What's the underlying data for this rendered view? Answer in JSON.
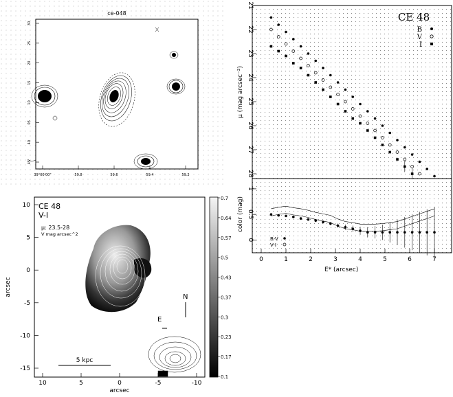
{
  "figure": {
    "contour_panel": {
      "title": "ce-048",
      "ra_ticks": [
        "39°00'00\"",
        "59.8",
        "59.6",
        "59.4",
        "59.2"
      ],
      "dec_ticks": [
        "30",
        "25",
        "20",
        "15",
        "10",
        "05",
        "40",
        "45"
      ]
    },
    "color_map": {
      "name": "CE 48",
      "band": "V-I",
      "mu_text": "μ: 23.5-28",
      "mu_units": "V mag arcsec^2",
      "scalebar": "5 kpc",
      "north": "N",
      "east": "E",
      "xlabel": "arcsec",
      "ylabel": "arcsec",
      "x_ticks": [
        "10",
        "5",
        "0",
        "-5",
        "-10"
      ],
      "y_ticks": [
        "10",
        "5",
        "0",
        "-5",
        "-10",
        "-15"
      ],
      "colorbar_ticks": [
        "0.7",
        "0.64",
        "0.57",
        "0.5",
        "0.43",
        "0.37",
        "0.3",
        "0.23",
        "0.17",
        "0.1"
      ]
    },
    "profile_panel": {
      "name": "CE 48",
      "ylabel": "μ (mag arcsec⁻²)",
      "xlabel": "E* (arcsec)",
      "legend": [
        {
          "band": "B",
          "marker": "filled-circle"
        },
        {
          "band": "V",
          "marker": "open-circle"
        },
        {
          "band": "I",
          "marker": "filled-square"
        }
      ]
    },
    "color_panel": {
      "ylabel": "color (mag)",
      "legend": [
        {
          "label": "B-V",
          "marker": "filled-circle"
        },
        {
          "label": "V-I",
          "marker": "open-circle"
        }
      ]
    }
  },
  "chart_data": [
    {
      "type": "scatter",
      "title": "CE 48",
      "xlabel": "E* (arcsec)",
      "ylabel": "μ (mag arcsec⁻²)",
      "xlim": [
        0,
        7.5
      ],
      "ylim": [
        28.2,
        21
      ],
      "x_ticks": [
        0,
        1,
        2,
        3,
        4,
        5,
        6,
        7
      ],
      "y_ticks": [
        21,
        22,
        23,
        24,
        25,
        26,
        27,
        28
      ],
      "series": [
        {
          "name": "B",
          "x": [
            0.4,
            0.7,
            1.0,
            1.3,
            1.6,
            1.9,
            2.2,
            2.5,
            2.8,
            3.1,
            3.4,
            3.7,
            4.0,
            4.3,
            4.6,
            4.9,
            5.2,
            5.5,
            5.8,
            6.1,
            6.4,
            6.7,
            7.0
          ],
          "y": [
            21.5,
            21.8,
            22.1,
            22.4,
            22.7,
            23.0,
            23.3,
            23.6,
            23.9,
            24.2,
            24.5,
            24.8,
            25.1,
            25.4,
            25.7,
            26.0,
            26.3,
            26.6,
            26.9,
            27.2,
            27.5,
            27.8,
            28.1
          ]
        },
        {
          "name": "V",
          "x": [
            0.4,
            0.7,
            1.0,
            1.3,
            1.6,
            1.9,
            2.2,
            2.5,
            2.8,
            3.1,
            3.4,
            3.7,
            4.0,
            4.3,
            4.6,
            4.9,
            5.2,
            5.5,
            5.8,
            6.1,
            6.4,
            6.7,
            7.0
          ],
          "y": [
            22.0,
            22.3,
            22.6,
            22.9,
            23.2,
            23.5,
            23.8,
            24.1,
            24.4,
            24.7,
            25.0,
            25.3,
            25.6,
            25.9,
            26.2,
            26.5,
            26.8,
            27.1,
            27.4,
            27.7,
            28.0,
            28.3,
            28.6
          ]
        },
        {
          "name": "I",
          "x": [
            0.4,
            0.7,
            1.0,
            1.3,
            1.6,
            1.9,
            2.2,
            2.5,
            2.8,
            3.1,
            3.4,
            3.7,
            4.0,
            4.3,
            4.6,
            4.9,
            5.2,
            5.5,
            5.8,
            6.1,
            6.4,
            6.7,
            7.0
          ],
          "y": [
            22.7,
            22.9,
            23.1,
            23.4,
            23.6,
            23.9,
            24.2,
            24.5,
            24.8,
            25.1,
            25.4,
            25.7,
            25.9,
            26.2,
            26.5,
            26.8,
            27.1,
            27.4,
            27.7,
            28.0,
            28.2,
            28.4,
            28.6
          ]
        }
      ]
    },
    {
      "type": "scatter",
      "xlabel": "E* (arcsec)",
      "ylabel": "color (mag)",
      "xlim": [
        0,
        7.5
      ],
      "ylim": [
        -0.25,
        1.2
      ],
      "x_ticks": [
        0,
        1,
        2,
        3,
        4,
        5,
        6,
        7
      ],
      "y_ticks": [
        0,
        0.5,
        1
      ],
      "series": [
        {
          "name": "B-V",
          "x": [
            0.4,
            0.7,
            1.0,
            1.3,
            1.6,
            1.9,
            2.2,
            2.5,
            2.8,
            3.1,
            3.4,
            3.7,
            4.0,
            4.3,
            4.6,
            4.9,
            5.2,
            5.5,
            5.8,
            6.1,
            6.4,
            6.7,
            7.0
          ],
          "y": [
            0.5,
            0.48,
            0.47,
            0.45,
            0.42,
            0.4,
            0.38,
            0.35,
            0.32,
            0.28,
            0.25,
            0.22,
            0.18,
            0.15,
            0.15,
            0.15,
            0.15,
            0.15,
            0.15,
            0.15,
            0.15,
            0.15,
            0.15
          ],
          "err": [
            0.02,
            0.02,
            0.02,
            0.02,
            0.02,
            0.02,
            0.03,
            0.03,
            0.03,
            0.04,
            0.05,
            0.06,
            0.08,
            0.1,
            0.12,
            0.15,
            0.2,
            0.25,
            0.3,
            0.35,
            0.4,
            0.45,
            0.5
          ]
        },
        {
          "name": "V-I",
          "x": [
            0.4,
            0.7,
            1.0,
            1.3,
            1.6,
            1.9,
            2.2,
            2.5,
            2.8,
            3.1,
            3.4,
            3.7,
            4.0,
            4.3,
            4.6,
            4.9,
            5.2,
            5.5,
            5.8,
            6.1,
            6.4,
            6.7,
            7.0
          ],
          "y": [
            0.55,
            0.58,
            0.6,
            0.57,
            0.55,
            0.52,
            0.48,
            0.45,
            0.42,
            0.35,
            0.3,
            0.28,
            0.25,
            0.25,
            0.25,
            0.26,
            0.28,
            0.3,
            0.35,
            0.4,
            0.45,
            0.5,
            0.55
          ]
        }
      ]
    }
  ]
}
